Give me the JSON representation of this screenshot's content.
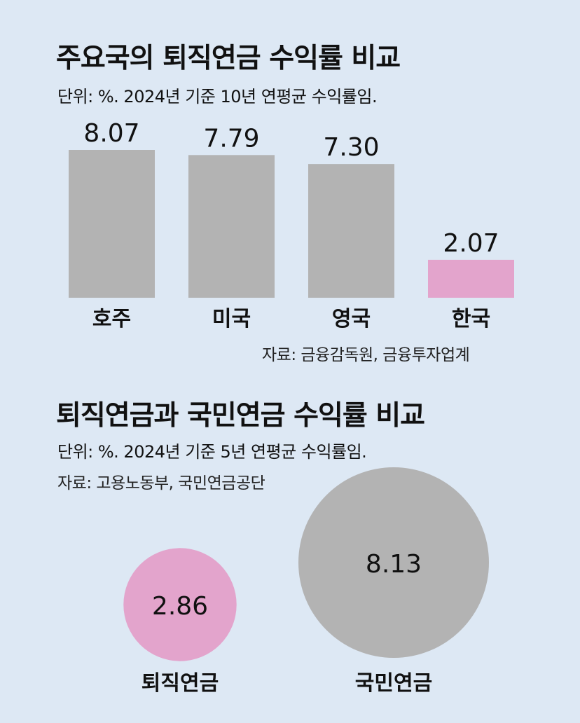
{
  "colors": {
    "background": "#dde8f4",
    "bar_default": "#b3b3b3",
    "bar_highlight": "#e3a4cc"
  },
  "chart1": {
    "title": "주요국의 퇴직연금 수익률 비교",
    "subtitle": "단위: %. 2024년 기준 10년 연평균 수익률임.",
    "source": "자료: 금융감독원, 금융투자업계"
  },
  "chart2": {
    "title": "퇴직연금과 국민연금 수익률 비교",
    "subtitle": "단위: %. 2024년 기준 5년 연평균 수익률임.",
    "source": "자료: 고용노동부, 국민연금공단"
  },
  "chart_data": [
    {
      "type": "bar",
      "title": "주요국의 퇴직연금 수익률 비교",
      "categories": [
        "호주",
        "미국",
        "영국",
        "한국"
      ],
      "values": [
        8.07,
        7.79,
        7.3,
        2.07
      ],
      "value_labels": [
        "8.07",
        "7.79",
        "7.30",
        "2.07"
      ],
      "highlight": "한국",
      "ylim": [
        0,
        8.07
      ],
      "grid": false
    },
    {
      "type": "bubble",
      "title": "퇴직연금과 국민연금 수익률 비교",
      "categories": [
        "퇴직연금",
        "국민연금"
      ],
      "values": [
        2.86,
        8.13
      ],
      "value_labels": [
        "2.86",
        "8.13"
      ],
      "highlight": "퇴직연금",
      "grid": false
    }
  ]
}
